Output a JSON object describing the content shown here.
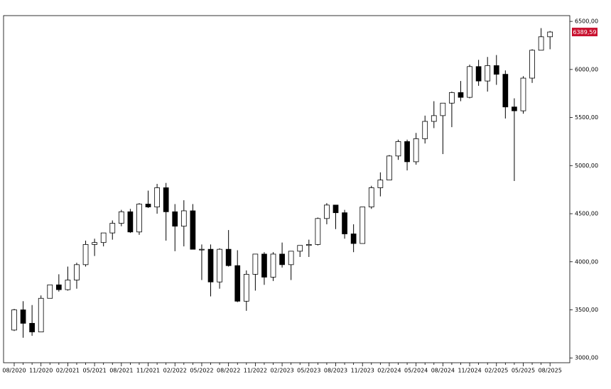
{
  "chart_data": {
    "type": "candlestick",
    "categories": [
      "08/2020",
      null,
      null,
      "11/2020",
      null,
      null,
      "02/2021",
      null,
      null,
      "05/2021",
      null,
      null,
      "08/2021",
      null,
      null,
      "11/2021",
      null,
      null,
      "02/2022",
      null,
      null,
      "05/2022",
      null,
      null,
      "08/2022",
      null,
      null,
      "11/2022",
      null,
      null,
      "02/2023",
      null,
      null,
      "05/2023",
      null,
      null,
      "08/2023",
      null,
      null,
      "11/2023",
      null,
      null,
      "02/2024",
      null,
      null,
      "05/2024",
      null,
      null,
      "08/2024",
      null,
      null,
      "11/2024",
      null,
      null,
      "02/2025",
      null,
      null,
      "05/2025",
      null,
      null,
      "08/2025"
    ],
    "open": [
      3290,
      3500,
      3360,
      3270,
      3620,
      3760,
      3710,
      3810,
      3970,
      4180,
      4200,
      4300,
      4400,
      4520,
      4310,
      4600,
      4570,
      4770,
      4520,
      4370,
      4530,
      4130,
      4130,
      3790,
      4130,
      3960,
      3590,
      3870,
      4080,
      3840,
      4080,
      3970,
      4110,
      4170,
      4180,
      4450,
      4590,
      4510,
      4290,
      4190,
      4570,
      4770,
      4850,
      5100,
      5250,
      5040,
      5280,
      5460,
      5520,
      5650,
      5760,
      5710,
      6030,
      5880,
      6040,
      5950,
      5610,
      5570,
      5910,
      6200,
      6340
    ],
    "high": [
      3510,
      3590,
      3550,
      3650,
      3760,
      3870,
      3950,
      3990,
      4220,
      4240,
      4300,
      4430,
      4540,
      4550,
      4610,
      4740,
      4810,
      4820,
      4600,
      4640,
      4600,
      4180,
      4180,
      4140,
      4330,
      4120,
      3910,
      4080,
      4100,
      4100,
      4200,
      4110,
      4170,
      4230,
      4460,
      4610,
      4590,
      4540,
      4390,
      4570,
      4790,
      4930,
      5110,
      5270,
      5270,
      5340,
      5520,
      5670,
      5650,
      5770,
      5880,
      6050,
      6100,
      6130,
      6150,
      5990,
      5700,
      5930,
      6210,
      6430,
      6400
    ],
    "low": [
      3280,
      3210,
      3230,
      3280,
      3620,
      3690,
      3700,
      3720,
      3950,
      4060,
      4160,
      4230,
      4370,
      4300,
      4280,
      4560,
      4500,
      4220,
      4110,
      4160,
      4130,
      3810,
      3640,
      3720,
      3950,
      3580,
      3490,
      3700,
      3760,
      3800,
      3940,
      3810,
      4050,
      4050,
      4170,
      4390,
      4340,
      4240,
      4100,
      4190,
      4550,
      4680,
      4850,
      5060,
      4950,
      5010,
      5230,
      5390,
      5120,
      5400,
      5670,
      5700,
      5830,
      5770,
      5840,
      5490,
      4840,
      5540,
      5860,
      6200,
      6210
    ],
    "close": [
      3500,
      3360,
      3270,
      3620,
      3760,
      3710,
      3810,
      3970,
      4180,
      4200,
      4300,
      4400,
      4520,
      4310,
      4600,
      4570,
      4770,
      4520,
      4370,
      4530,
      4130,
      4130,
      3790,
      4130,
      3960,
      3590,
      3870,
      4080,
      3840,
      4080,
      3970,
      4110,
      4170,
      4180,
      4450,
      4590,
      4510,
      4290,
      4190,
      4570,
      4770,
      4850,
      5100,
      5250,
      5040,
      5280,
      5460,
      5520,
      5650,
      5760,
      5710,
      6030,
      5880,
      6040,
      5950,
      5610,
      5570,
      5910,
      6200,
      6340,
      6389.59
    ],
    "value_labels": {
      "last": "6389,59"
    },
    "ylim": [
      2950,
      6560
    ],
    "yticks": [
      {
        "value": 3000,
        "label": "3000,00"
      },
      {
        "value": 3500,
        "label": "3500,00"
      },
      {
        "value": 4000,
        "label": "4000,00"
      },
      {
        "value": 4500,
        "label": "4500,00"
      },
      {
        "value": 5000,
        "label": "5000,00"
      },
      {
        "value": 5500,
        "label": "5500,00"
      },
      {
        "value": 6000,
        "label": "6000,00"
      },
      {
        "value": 6500,
        "label": "6500,00"
      }
    ],
    "up_color": "#ffffff",
    "down_color": "#000000",
    "last_color": "#c8102e"
  }
}
